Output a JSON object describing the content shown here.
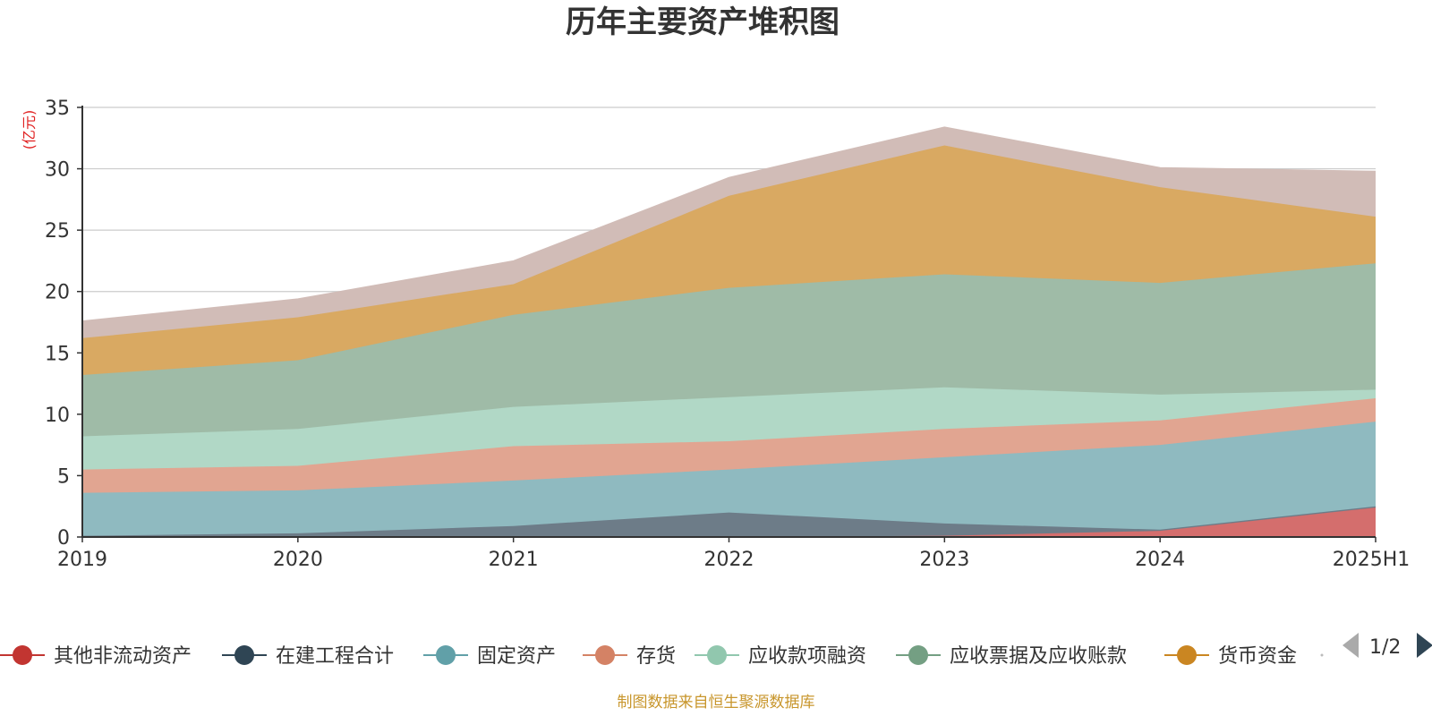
{
  "chart_data": {
    "type": "area",
    "stacked": true,
    "title": "历年主要资产堆积图",
    "unit_label": "(亿元)",
    "categories": [
      "2019",
      "2020",
      "2021",
      "2022",
      "2023",
      "2024",
      "2025H1"
    ],
    "ylim": [
      0,
      35
    ],
    "yticks": [
      "0",
      "5",
      "10",
      "15",
      "20",
      "25",
      "30",
      "35"
    ],
    "grid": true,
    "legend_position": "bottom",
    "legend_page": "1/2",
    "source_note": "制图数据来自恒生聚源数据库",
    "series": [
      {
        "name": "其他非流动资产",
        "color": "#c23531",
        "area_color": "#d46e6d",
        "values": [
          0.0,
          0.0,
          0.0,
          0.0,
          0.1,
          0.5,
          2.4
        ]
      },
      {
        "name": "在建工程合计",
        "color": "#2f4554",
        "area_color": "#6d7c88",
        "values": [
          0.1,
          0.3,
          0.9,
          2.0,
          1.0,
          0.1,
          0.1
        ]
      },
      {
        "name": "固定资产",
        "color": "#61a0a8",
        "area_color": "#8fbac0",
        "values": [
          3.5,
          3.5,
          3.7,
          3.5,
          5.4,
          6.9,
          6.9
        ]
      },
      {
        "name": "存货",
        "color": "#d48265",
        "area_color": "#e1a591",
        "values": [
          1.9,
          2.0,
          2.8,
          2.3,
          2.3,
          2.0,
          1.9
        ]
      },
      {
        "name": "应收款项融资",
        "color": "#91c7ae",
        "area_color": "#b1d8c6",
        "values": [
          2.7,
          3.0,
          3.2,
          3.6,
          3.4,
          2.1,
          0.7
        ]
      },
      {
        "name": "应收票据及应收账款",
        "color": "#749f83",
        "area_color": "#9fbba7",
        "values": [
          5.0,
          5.6,
          7.5,
          8.9,
          9.2,
          9.1,
          10.3
        ]
      },
      {
        "name": "货币资金",
        "color": "#ca8622",
        "area_color": "#d9a962",
        "values": [
          3.0,
          3.5,
          2.5,
          7.5,
          10.5,
          7.8,
          3.8
        ]
      },
      {
        "name": "",
        "color": "#bda29a",
        "area_color": "#d1bcb7",
        "values": [
          1.4,
          1.5,
          1.9,
          1.5,
          1.5,
          1.6,
          3.7
        ]
      }
    ]
  }
}
